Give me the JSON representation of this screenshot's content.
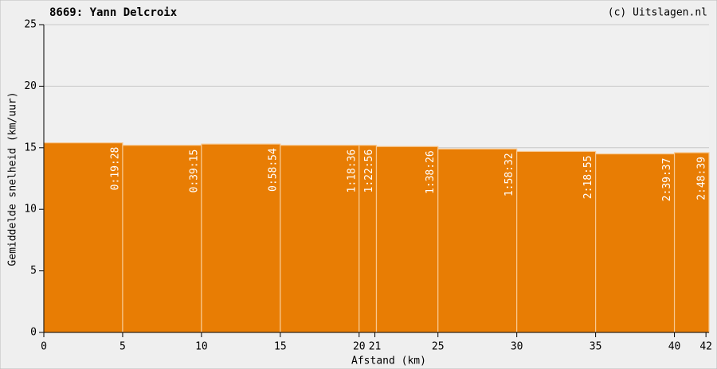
{
  "chart_data": {
    "type": "histogram",
    "title": "8669: Yann Delcroix",
    "credit": "(c) Uitslagen.nl",
    "x_label": "Afstand (km)",
    "y_label": "Gemiddelde snelheid (km/uur)",
    "bins": [
      0,
      5,
      10,
      15,
      20,
      21.0975,
      25,
      30,
      35,
      40,
      42.195
    ],
    "values": [
      15.4,
      15.2,
      15.3,
      15.2,
      15.2,
      15.1,
      14.9,
      14.7,
      14.5,
      14.6
    ],
    "split_times": [
      "0:19:28",
      "0:39:15",
      "0:58:54",
      "1:18:36",
      "1:22:56",
      "1:38:26",
      "1:58:32",
      "2:18:55",
      "2:39:37",
      "2:48:39"
    ],
    "color": "#e87d04",
    "xlim": [
      0,
      42.195
    ],
    "ylim": [
      0,
      25
    ],
    "xticks": [
      0,
      5,
      10,
      15,
      20,
      21,
      25,
      30,
      35,
      40,
      42
    ],
    "yticks": [
      0,
      5,
      10,
      15,
      20,
      25
    ],
    "grid": true
  }
}
